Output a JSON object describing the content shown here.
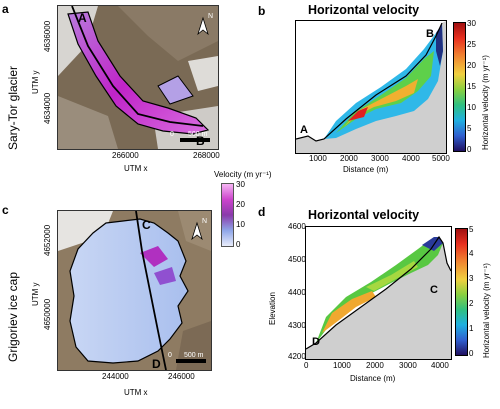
{
  "panels": {
    "a": {
      "letter": "a",
      "site": "Sary-Tor glacier",
      "y_axis_label": "UTM y",
      "x_axis_label": "UTM x",
      "y_ticks": [
        "4636000",
        "4634000"
      ],
      "x_ticks": [
        "266000",
        "268000"
      ],
      "profile_start": "A",
      "profile_end": "B",
      "scale_label": "0",
      "scale_value": "500 m",
      "north": "N"
    },
    "b": {
      "letter": "b",
      "title": "Horizontal velocity",
      "x_axis_label": "Distance (m)",
      "x_ticks": [
        "1000",
        "2000",
        "3000",
        "4000",
        "5000"
      ],
      "profile_start": "A",
      "profile_end": "B",
      "colorbar_label": "Horizontal velocity (m yr⁻¹)",
      "colorbar_ticks": [
        "0",
        "5",
        "10",
        "15",
        "20",
        "25",
        "30"
      ]
    },
    "velocity_bar": {
      "label": "Velocity (m yr⁻¹)",
      "ticks": [
        "30",
        "20",
        "10",
        "0"
      ]
    },
    "c": {
      "letter": "c",
      "site": "Grigoriev ice cap",
      "y_axis_label": "UTM y",
      "x_axis_label": "UTM x",
      "y_ticks": [
        "4652000",
        "4650000"
      ],
      "x_ticks": [
        "244000",
        "246000"
      ],
      "profile_start": "C",
      "profile_end": "D",
      "scale_label": "0",
      "scale_value": "500 m",
      "north": "N"
    },
    "d": {
      "letter": "d",
      "title": "Horizontal velocity",
      "y_axis_label": "Elevation",
      "x_axis_label": "Distance (m)",
      "x_ticks": [
        "0",
        "1000",
        "2000",
        "3000",
        "4000"
      ],
      "y_ticks": [
        "4600",
        "4500",
        "4400",
        "4300",
        "4200"
      ],
      "profile_start": "D",
      "profile_end": "C",
      "colorbar_label": "Horizontal velocity (m yr⁻¹)",
      "colorbar_ticks": [
        "0",
        "1",
        "2",
        "3",
        "4",
        "5"
      ]
    }
  },
  "colors": {
    "terrain": "#cfcfcf",
    "map_bg": "#6a5a4a",
    "ice_low": "#b9cdf2",
    "ice_high": "#c020c0"
  }
}
